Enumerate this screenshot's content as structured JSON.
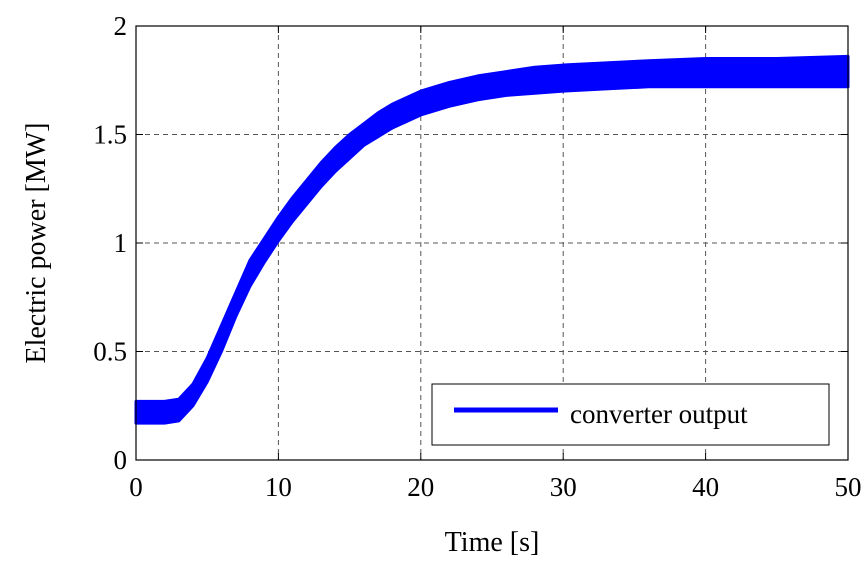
{
  "chart_data": {
    "type": "line",
    "xlabel": "Time [s]",
    "ylabel": "Electric power [MW]",
    "xlim": [
      0,
      50
    ],
    "ylim": [
      0,
      2
    ],
    "xticks": [
      0,
      10,
      20,
      30,
      40,
      50
    ],
    "xtick_labels": [
      "0",
      "10",
      "20",
      "30",
      "40",
      "50"
    ],
    "yticks": [
      0,
      0.5,
      1,
      1.5,
      2
    ],
    "ytick_labels": [
      "0",
      "0.5",
      "1",
      "1.5",
      "2"
    ],
    "grid": true,
    "legend_position": "bottom-right",
    "series": [
      {
        "name": "converter output",
        "color": "#0000ff",
        "x": [
          0,
          1,
          2,
          3,
          4,
          5,
          6,
          7,
          8,
          9,
          10,
          11,
          12,
          13,
          14,
          15,
          16,
          17,
          18,
          19,
          20,
          22,
          24,
          26,
          28,
          30,
          33,
          36,
          40,
          45,
          50
        ],
        "y_upper": [
          0.27,
          0.27,
          0.27,
          0.28,
          0.35,
          0.47,
          0.62,
          0.77,
          0.92,
          1.02,
          1.12,
          1.21,
          1.29,
          1.37,
          1.44,
          1.5,
          1.55,
          1.6,
          1.64,
          1.67,
          1.7,
          1.74,
          1.77,
          1.79,
          1.81,
          1.82,
          1.83,
          1.84,
          1.85,
          1.85,
          1.86
        ],
        "y_lower": [
          0.17,
          0.17,
          0.17,
          0.18,
          0.25,
          0.36,
          0.5,
          0.66,
          0.8,
          0.91,
          1.01,
          1.1,
          1.18,
          1.26,
          1.33,
          1.39,
          1.45,
          1.49,
          1.53,
          1.56,
          1.59,
          1.63,
          1.66,
          1.68,
          1.69,
          1.7,
          1.71,
          1.72,
          1.72,
          1.72,
          1.72
        ]
      }
    ]
  }
}
